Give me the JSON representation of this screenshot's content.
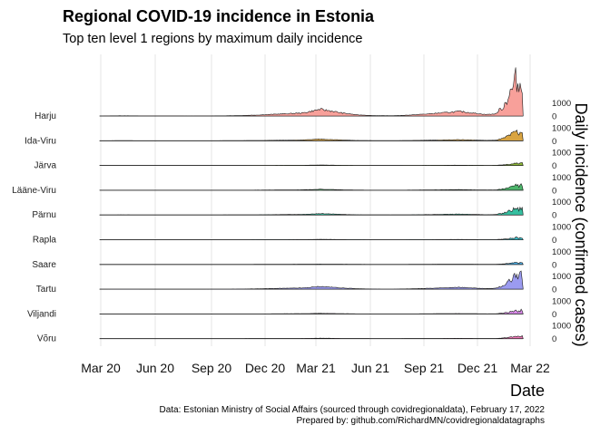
{
  "chart_data": {
    "type": "area",
    "title": "Regional COVID-19 incidence in Estonia",
    "subtitle": "Top ten level 1 regions by maximum daily incidence",
    "xlabel": "Date",
    "ylabel": "Daily incidence (confirmed cases)",
    "x_ticks": [
      "Mar 20",
      "Jun 20",
      "Sep 20",
      "Dec 20",
      "Mar 21",
      "Jun 21",
      "Sep 21",
      "Dec 21",
      "Mar 22"
    ],
    "y_ticks": [
      "0",
      "1000"
    ],
    "grid": true,
    "legend": "none",
    "series_shape": [
      {
        "date": "2020-02-28",
        "v": 0
      },
      {
        "date": "2020-03-20",
        "v": 0.02
      },
      {
        "date": "2020-04-05",
        "v": 0.03
      },
      {
        "date": "2020-05-15",
        "v": 0.01
      },
      {
        "date": "2020-08-01",
        "v": 0.005
      },
      {
        "date": "2020-09-15",
        "v": 0.02
      },
      {
        "date": "2020-10-20",
        "v": 0.05
      },
      {
        "date": "2020-11-20",
        "v": 0.12
      },
      {
        "date": "2020-12-20",
        "v": 0.22
      },
      {
        "date": "2021-01-10",
        "v": 0.28
      },
      {
        "date": "2021-02-05",
        "v": 0.36
      },
      {
        "date": "2021-02-20",
        "v": 0.55
      },
      {
        "date": "2021-03-08",
        "v": 0.8
      },
      {
        "date": "2021-03-25",
        "v": 0.62
      },
      {
        "date": "2021-04-15",
        "v": 0.35
      },
      {
        "date": "2021-05-10",
        "v": 0.14
      },
      {
        "date": "2021-06-10",
        "v": 0.04
      },
      {
        "date": "2021-07-10",
        "v": 0.03
      },
      {
        "date": "2021-08-10",
        "v": 0.12
      },
      {
        "date": "2021-09-10",
        "v": 0.26
      },
      {
        "date": "2021-10-10",
        "v": 0.42
      },
      {
        "date": "2021-11-01",
        "v": 0.55
      },
      {
        "date": "2021-11-20",
        "v": 0.38
      },
      {
        "date": "2021-12-15",
        "v": 0.18
      },
      {
        "date": "2022-01-01",
        "v": 0.25
      },
      {
        "date": "2022-01-15",
        "v": 1.2
      },
      {
        "date": "2022-01-25",
        "v": 2.6
      },
      {
        "date": "2022-02-01",
        "v": 3.6
      },
      {
        "date": "2022-02-05",
        "v": 4.6
      },
      {
        "date": "2022-02-10",
        "v": 3.2
      },
      {
        "date": "2022-02-14",
        "v": 4.8
      },
      {
        "date": "2022-02-17",
        "v": 3.3
      }
    ],
    "series": [
      {
        "name": "Harju",
        "color": "#F8A09A",
        "peak": 1
      },
      {
        "name": "Ida-Viru",
        "color": "#D9A441",
        "peak": 0.245
      },
      {
        "name": "Järva",
        "color": "#8DB83A",
        "peak": 0.07
      },
      {
        "name": "Lääne-Viru",
        "color": "#4DB56B",
        "peak": 0.14
      },
      {
        "name": "Pärnu",
        "color": "#35BFA0",
        "peak": 0.2
      },
      {
        "name": "Rapla",
        "color": "#3CBCC8",
        "peak": 0.055
      },
      {
        "name": "Saare",
        "color": "#4DB0E8",
        "peak": 0.05
      },
      {
        "name": "Tartu",
        "color": "#9B9BF0",
        "peak": 0.4
      },
      {
        "name": "Viljandi",
        "color": "#D88AE8",
        "peak": 0.09
      },
      {
        "name": "Võru",
        "color": "#F07AB8",
        "peak": 0.07
      }
    ]
  },
  "caption": {
    "line1": "Data: Estonian Ministry of Social Affairs (sourced through covidregionaldata), February 17, 2022",
    "line2": "Prepared by: github.com/RichardMN/covidregionaldatagraphs"
  }
}
